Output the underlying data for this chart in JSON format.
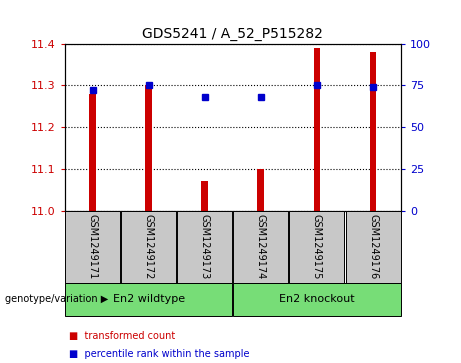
{
  "title": "GDS5241 / A_52_P515282",
  "samples": [
    "GSM1249171",
    "GSM1249172",
    "GSM1249173",
    "GSM1249174",
    "GSM1249175",
    "GSM1249176"
  ],
  "red_values": [
    11.28,
    11.3,
    11.07,
    11.1,
    11.39,
    11.38
  ],
  "blue_values": [
    72,
    75,
    68,
    68,
    75,
    74
  ],
  "ylim_left": [
    11.0,
    11.4
  ],
  "ylim_right": [
    0,
    100
  ],
  "yticks_left": [
    11.0,
    11.1,
    11.2,
    11.3,
    11.4
  ],
  "yticks_right": [
    0,
    25,
    50,
    75,
    100
  ],
  "groups": [
    {
      "label": "En2 wildtype",
      "start": 0,
      "end": 2
    },
    {
      "label": "En2 knockout",
      "start": 3,
      "end": 5
    }
  ],
  "group_label_prefix": "genotype/variation",
  "left_color": "#cc0000",
  "right_color": "#0000cc",
  "bar_width": 0.12,
  "background_color": "#ffffff",
  "sample_bg_color": "#c8c8c8",
  "group_bg_color": "#77dd77",
  "legend_items": [
    {
      "color": "#cc0000",
      "label": "transformed count"
    },
    {
      "color": "#0000cc",
      "label": "percentile rank within the sample"
    }
  ]
}
